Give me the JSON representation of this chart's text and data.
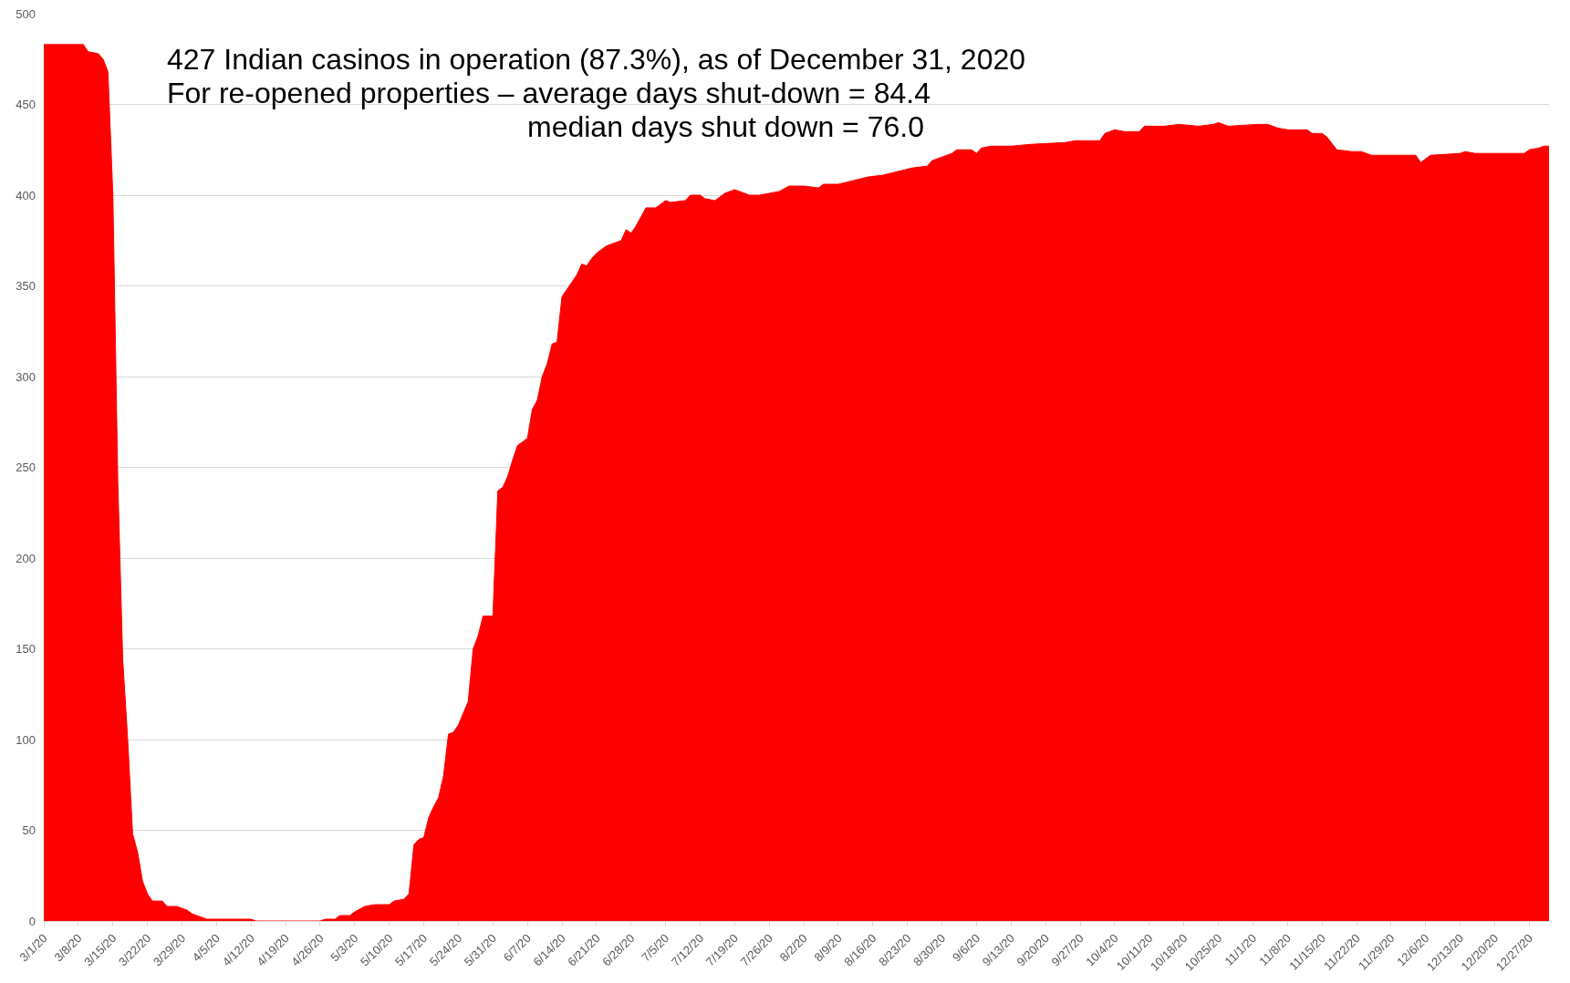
{
  "chart_data": {
    "type": "area",
    "annotations": [
      "427 Indian casinos in operation (87.3%), as of December 31, 2020",
      "For re-opened properties – average days shut-down = 84.4",
      "median days shut down = 76.0"
    ],
    "x": [
      "2020-03-01",
      "2020-03-08",
      "2020-03-09",
      "2020-03-10",
      "2020-03-12",
      "2020-03-13",
      "2020-03-14",
      "2020-03-15",
      "2020-03-16",
      "2020-03-17",
      "2020-03-18",
      "2020-03-19",
      "2020-03-20",
      "2020-03-21",
      "2020-03-22",
      "2020-03-23",
      "2020-03-25",
      "2020-03-26",
      "2020-03-28",
      "2020-03-29",
      "2020-03-30",
      "2020-03-31",
      "2020-04-01",
      "2020-04-02",
      "2020-04-03",
      "2020-04-12",
      "2020-04-13",
      "2020-04-26",
      "2020-04-27",
      "2020-04-29",
      "2020-04-30",
      "2020-05-02",
      "2020-05-03",
      "2020-05-05",
      "2020-05-07",
      "2020-05-10",
      "2020-05-11",
      "2020-05-13",
      "2020-05-14",
      "2020-05-15",
      "2020-05-16",
      "2020-05-17",
      "2020-05-18",
      "2020-05-19",
      "2020-05-20",
      "2020-05-21",
      "2020-05-22",
      "2020-05-23",
      "2020-05-24",
      "2020-05-26",
      "2020-05-27",
      "2020-05-28",
      "2020-05-29",
      "2020-05-31",
      "2020-06-01",
      "2020-06-02",
      "2020-06-03",
      "2020-06-04",
      "2020-06-05",
      "2020-06-06",
      "2020-06-07",
      "2020-06-08",
      "2020-06-09",
      "2020-06-10",
      "2020-06-11",
      "2020-06-12",
      "2020-06-13",
      "2020-06-14",
      "2020-06-15",
      "2020-06-16",
      "2020-06-17",
      "2020-06-18",
      "2020-06-19",
      "2020-06-20",
      "2020-06-21",
      "2020-06-22",
      "2020-06-23",
      "2020-06-24",
      "2020-06-26",
      "2020-06-27",
      "2020-06-28",
      "2020-06-29",
      "2020-06-30",
      "2020-07-01",
      "2020-07-03",
      "2020-07-04",
      "2020-07-05",
      "2020-07-06",
      "2020-07-09",
      "2020-07-10",
      "2020-07-12",
      "2020-07-13",
      "2020-07-15",
      "2020-07-17",
      "2020-07-19",
      "2020-07-20",
      "2020-07-22",
      "2020-07-24",
      "2020-07-26",
      "2020-07-28",
      "2020-07-30",
      "2020-08-02",
      "2020-08-05",
      "2020-08-06",
      "2020-08-09",
      "2020-08-12",
      "2020-08-15",
      "2020-08-18",
      "2020-08-21",
      "2020-08-24",
      "2020-08-27",
      "2020-08-28",
      "2020-08-30",
      "2020-09-01",
      "2020-09-02",
      "2020-09-05",
      "2020-09-06",
      "2020-09-07",
      "2020-09-09",
      "2020-09-13",
      "2020-09-17",
      "2020-09-24",
      "2020-09-26",
      "2020-10-01",
      "2020-10-02",
      "2020-10-04",
      "2020-10-06",
      "2020-10-09",
      "2020-10-10",
      "2020-10-14",
      "2020-10-17",
      "2020-10-21",
      "2020-10-24",
      "2020-10-25",
      "2020-10-27",
      "2020-11-02",
      "2020-11-04",
      "2020-11-06",
      "2020-11-08",
      "2020-11-12",
      "2020-11-13",
      "2020-11-15",
      "2020-11-16",
      "2020-11-18",
      "2020-11-21",
      "2020-11-23",
      "2020-11-25",
      "2020-12-04",
      "2020-12-05",
      "2020-12-07",
      "2020-12-13",
      "2020-12-14",
      "2020-12-16",
      "2020-12-26",
      "2020-12-27",
      "2020-12-29",
      "2020-12-30",
      "2020-12-31"
    ],
    "series": [
      {
        "color": "#ff0000",
        "values": [
          483,
          483,
          483,
          479,
          478,
          475,
          468,
          400,
          242,
          144,
          100,
          48,
          38,
          22,
          15,
          11,
          11,
          8,
          8,
          7,
          6,
          4,
          3,
          2,
          1,
          1,
          0,
          0,
          1,
          1,
          3,
          3,
          5,
          8,
          9,
          9,
          11,
          12,
          15,
          42,
          45,
          46,
          57,
          63,
          68,
          80,
          103,
          104,
          108,
          121,
          150,
          157,
          168,
          168,
          237,
          239,
          245,
          254,
          262,
          264,
          266,
          282,
          287,
          300,
          307,
          318,
          319,
          344,
          348,
          352,
          356,
          362,
          361,
          365,
          368,
          370,
          372,
          373,
          375,
          381,
          379,
          383,
          388,
          393,
          393,
          395,
          397,
          396,
          397,
          400,
          400,
          398,
          397,
          401,
          403,
          402,
          400,
          400,
          401,
          402,
          405,
          405,
          404,
          406,
          406,
          408,
          410,
          411,
          413,
          415,
          416,
          419,
          421,
          423,
          425,
          425,
          423,
          426,
          427,
          427,
          428,
          429,
          430,
          430,
          434,
          436,
          435,
          435,
          438,
          438,
          439,
          438,
          439,
          440,
          438,
          439,
          439,
          437,
          436,
          436,
          434,
          434,
          432,
          425,
          424,
          424,
          422,
          422,
          418,
          422,
          423,
          424,
          423,
          423,
          425,
          426,
          427,
          427
        ]
      }
    ],
    "xlim": [
      "2020-03-01",
      "2020-12-31"
    ],
    "xticks": [
      {
        "value": "2020-03-01",
        "label": "3/1/20"
      },
      {
        "value": "2020-03-08",
        "label": "3/8/20"
      },
      {
        "value": "2020-03-15",
        "label": "3/15/20"
      },
      {
        "value": "2020-03-22",
        "label": "3/22/20"
      },
      {
        "value": "2020-03-29",
        "label": "3/29/20"
      },
      {
        "value": "2020-04-05",
        "label": "4/5/20"
      },
      {
        "value": "2020-04-12",
        "label": "4/12/20"
      },
      {
        "value": "2020-04-19",
        "label": "4/19/20"
      },
      {
        "value": "2020-04-26",
        "label": "4/26/20"
      },
      {
        "value": "2020-05-03",
        "label": "5/3/20"
      },
      {
        "value": "2020-05-10",
        "label": "5/10/20"
      },
      {
        "value": "2020-05-17",
        "label": "5/17/20"
      },
      {
        "value": "2020-05-24",
        "label": "5/24/20"
      },
      {
        "value": "2020-05-31",
        "label": "5/31/20"
      },
      {
        "value": "2020-06-07",
        "label": "6/7/20"
      },
      {
        "value": "2020-06-14",
        "label": "6/14/20"
      },
      {
        "value": "2020-06-21",
        "label": "6/21/20"
      },
      {
        "value": "2020-06-28",
        "label": "6/28/20"
      },
      {
        "value": "2020-07-05",
        "label": "7/5/20"
      },
      {
        "value": "2020-07-12",
        "label": "7/12/20"
      },
      {
        "value": "2020-07-19",
        "label": "7/19/20"
      },
      {
        "value": "2020-07-26",
        "label": "7/26/20"
      },
      {
        "value": "2020-08-02",
        "label": "8/2/20"
      },
      {
        "value": "2020-08-09",
        "label": "8/9/20"
      },
      {
        "value": "2020-08-16",
        "label": "8/16/20"
      },
      {
        "value": "2020-08-23",
        "label": "8/23/20"
      },
      {
        "value": "2020-08-30",
        "label": "8/30/20"
      },
      {
        "value": "2020-09-06",
        "label": "9/6/20"
      },
      {
        "value": "2020-09-13",
        "label": "9/13/20"
      },
      {
        "value": "2020-09-20",
        "label": "9/20/20"
      },
      {
        "value": "2020-09-27",
        "label": "9/27/20"
      },
      {
        "value": "2020-10-04",
        "label": "10/4/20"
      },
      {
        "value": "2020-10-11",
        "label": "10/11/20"
      },
      {
        "value": "2020-10-18",
        "label": "10/18/20"
      },
      {
        "value": "2020-10-25",
        "label": "10/25/20"
      },
      {
        "value": "2020-11-01",
        "label": "11/1/20"
      },
      {
        "value": "2020-11-08",
        "label": "11/8/20"
      },
      {
        "value": "2020-11-15",
        "label": "11/15/20"
      },
      {
        "value": "2020-11-22",
        "label": "11/22/20"
      },
      {
        "value": "2020-11-29",
        "label": "11/29/20"
      },
      {
        "value": "2020-12-06",
        "label": "12/6/20"
      },
      {
        "value": "2020-12-13",
        "label": "12/13/20"
      },
      {
        "value": "2020-12-20",
        "label": "12/20/20"
      },
      {
        "value": "2020-12-27",
        "label": "12/27/20"
      }
    ],
    "ylim": [
      0,
      500
    ],
    "yticks": [
      0,
      50,
      100,
      150,
      200,
      250,
      300,
      350,
      400,
      450,
      500
    ],
    "grid": "y"
  }
}
